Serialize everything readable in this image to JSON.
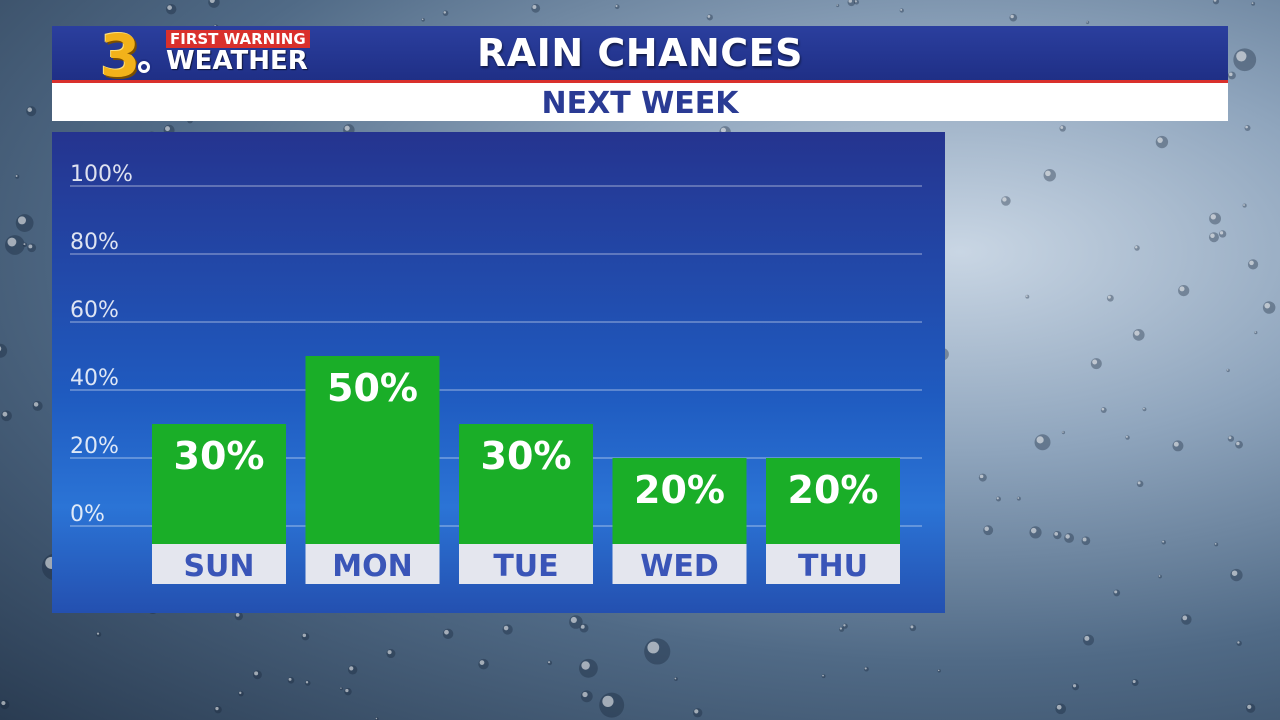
{
  "logo": {
    "number": "3",
    "line1": "FIRST WARNING",
    "line2": "WEATHER"
  },
  "header": {
    "title": "RAIN CHANCES",
    "subtitle": "NEXT WEEK"
  },
  "colors": {
    "header_blue": "#1f2f86",
    "accent_red": "#d9302c",
    "bar_green": "#1aae28",
    "label_box": "#e4e6ee",
    "day_text": "#3a55b8"
  },
  "chart_data": {
    "type": "bar",
    "title": "RAIN CHANCES",
    "subtitle": "NEXT WEEK",
    "categories": [
      "SUN",
      "MON",
      "TUE",
      "WED",
      "THU"
    ],
    "values": [
      30,
      50,
      30,
      20,
      20
    ],
    "value_labels": [
      "30%",
      "50%",
      "30%",
      "20%",
      "20%"
    ],
    "y_ticks": [
      0,
      20,
      40,
      60,
      80,
      100
    ],
    "y_tick_labels": [
      "0%",
      "20%",
      "40%",
      "60%",
      "80%",
      "100%"
    ],
    "ylim": [
      0,
      100
    ],
    "grid": true,
    "legend": "none"
  }
}
